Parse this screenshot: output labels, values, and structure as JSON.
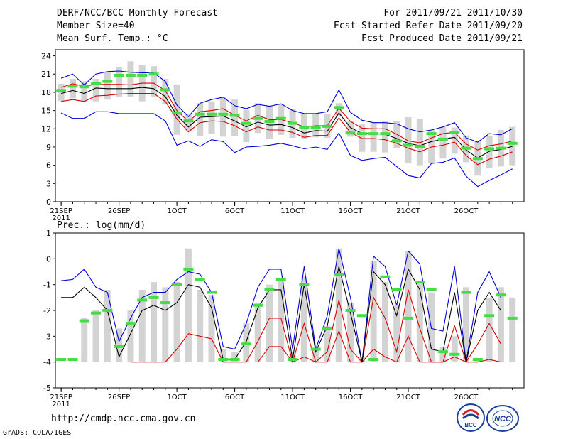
{
  "header": {
    "title": "DERF/NCC/BCC Monthly Forecast",
    "member_size": "Member Size=40",
    "variable": "Mean Surf. Temp.: °C",
    "period": "For 2011/09/21-2011/10/30",
    "refer_date": "Fcst Started Refer Date 2011/09/20",
    "produced_date": "Fcst Produced Date 2011/09/21"
  },
  "footer": {
    "url": "http://cmdp.ncc.cma.gov.cn",
    "credit": "GrADS: COLA/IGES",
    "logo_bcc": "BCC",
    "logo_ncc": "NCC"
  },
  "colors": {
    "box": "#d3d3d3",
    "mean_line": "#000000",
    "inner_band": "#dd0000",
    "outer_band": "#0000dd",
    "median_marker": "#44dd44"
  },
  "chart_data": [
    {
      "type": "line",
      "title": "Mean Surf. Temp.: °C",
      "x": [
        21,
        22,
        23,
        24,
        25,
        26,
        27,
        28,
        29,
        30,
        1,
        2,
        3,
        4,
        5,
        6,
        7,
        8,
        9,
        10,
        11,
        12,
        13,
        14,
        15,
        16,
        17,
        18,
        19,
        20,
        21,
        22,
        23,
        24,
        25,
        26,
        27,
        28,
        29,
        30
      ],
      "x_ticks": [
        "21SEP",
        "26SEP",
        "1OCT",
        "6OCT",
        "11OCT",
        "16OCT",
        "21OCT",
        "26OCT"
      ],
      "x_tick_year": "2011",
      "y_ticks": [
        "0",
        "3",
        "6",
        "9",
        "12",
        "15",
        "18",
        "21",
        "24"
      ],
      "ylim": [
        0,
        25
      ],
      "series": [
        {
          "name": "max",
          "values": [
            20.3,
            21,
            19.2,
            21,
            21.4,
            21.5,
            21.3,
            21.2,
            21.2,
            19.8,
            15.9,
            14,
            16.2,
            16.8,
            17.2,
            15.8,
            15.3,
            16,
            15.7,
            16.1,
            15,
            14.5,
            14.5,
            14.8,
            18.4,
            14.7,
            13.4,
            13,
            13,
            12.8,
            12,
            11.5,
            11.8,
            12.3,
            13,
            10.5,
            9.8,
            11.2,
            11,
            12
          ]
        },
        {
          "name": "upper",
          "values": [
            18.8,
            19.4,
            19,
            19.3,
            19.3,
            19.3,
            19.2,
            19.5,
            19.5,
            18.3,
            15,
            13.2,
            14.8,
            15,
            15.3,
            14.2,
            13.3,
            14.2,
            13.5,
            13.5,
            13,
            12.3,
            12.5,
            12.5,
            15.4,
            13.2,
            12.1,
            12,
            12,
            11.1,
            10,
            9.7,
            10.5,
            11.2,
            11.4,
            9.5,
            8.5,
            9.2,
            9.5,
            10
          ]
        },
        {
          "name": "mean",
          "values": [
            17.8,
            18.3,
            17.8,
            18.7,
            18.6,
            18.6,
            18.6,
            18.8,
            18.6,
            17.3,
            14.2,
            12.3,
            13.9,
            14,
            14.1,
            13.3,
            12.3,
            13.1,
            12.6,
            12.7,
            12.2,
            11.3,
            11.7,
            11.6,
            14.6,
            12.2,
            11.2,
            11.2,
            11.1,
            10.4,
            9.6,
            9.2,
            9.9,
            10.3,
            10.6,
            8.5,
            7.2,
            8.3,
            8.6,
            9.1
          ]
        },
        {
          "name": "lower",
          "values": [
            16.5,
            16.8,
            16.5,
            17.4,
            17.5,
            17.7,
            17.8,
            17.8,
            17.8,
            16.5,
            13.6,
            11.5,
            13,
            13.3,
            13.2,
            12.5,
            11.5,
            12.3,
            11.8,
            11.8,
            11.4,
            10.6,
            10.9,
            10.9,
            13.8,
            11.4,
            10.4,
            10.4,
            10.2,
            9.6,
            8.8,
            8.2,
            9,
            9.3,
            9.8,
            7.6,
            6.1,
            7,
            7.5,
            8.2
          ]
        },
        {
          "name": "min",
          "values": [
            14.6,
            13.7,
            13.7,
            14.8,
            14.8,
            14.5,
            14.5,
            14.5,
            14.5,
            13.3,
            9.3,
            10,
            9.1,
            10.2,
            9.9,
            8.1,
            9,
            9.1,
            9.3,
            9.6,
            9.2,
            8.7,
            9,
            8.6,
            11.3,
            7.6,
            6.8,
            7.1,
            7.3,
            5.8,
            4.3,
            3.9,
            6.3,
            6.5,
            7.2,
            4.2,
            2.5,
            3.5,
            4.4,
            5.4
          ]
        },
        {
          "name": "median",
          "values": [
            18.3,
            19,
            18.9,
            19.5,
            19.8,
            20.8,
            20.8,
            20.8,
            21,
            18.4,
            14.6,
            13.3,
            14.4,
            14.4,
            14.4,
            14.2,
            12.9,
            13.7,
            13.2,
            13.7,
            12.9,
            12.2,
            12.2,
            12.4,
            15.5,
            11.3,
            11.2,
            11.2,
            11.2,
            10,
            9.3,
            9.1,
            11.2,
            10.3,
            11.4,
            8.8,
            7.1,
            8.7,
            8.8,
            9.6
          ]
        },
        {
          "name": "box_low",
          "values": [
            16.6,
            17,
            16.5,
            16.5,
            16.8,
            17.3,
            17.3,
            16.5,
            17.3,
            16,
            11,
            11.6,
            10.8,
            11.2,
            10.7,
            10.8,
            9.8,
            11.3,
            10.3,
            11,
            10.5,
            10.4,
            10.6,
            10.5,
            14,
            10.7,
            8.2,
            8.2,
            8.1,
            8.8,
            6.3,
            6,
            6.4,
            7.1,
            7.9,
            6.5,
            4.3,
            5.5,
            5.8,
            6
          ]
        },
        {
          "name": "box_high",
          "values": [
            19.4,
            20.2,
            19.8,
            20.2,
            21.3,
            22.1,
            23.1,
            22.5,
            22.3,
            20.2,
            19.3,
            14.4,
            16.2,
            16.5,
            17.2,
            16.8,
            15.1,
            16.2,
            15.8,
            16,
            15.3,
            14.4,
            14.5,
            14.5,
            16.2,
            13.2,
            12.7,
            13,
            13.2,
            13.2,
            13.9,
            13.6,
            11.8,
            12.3,
            12.2,
            10.9,
            10,
            10.9,
            11.8,
            12.3
          ]
        }
      ]
    },
    {
      "type": "line",
      "title": "Prec.: log(mm/d)",
      "x": [
        21,
        22,
        23,
        24,
        25,
        26,
        27,
        28,
        29,
        30,
        1,
        2,
        3,
        4,
        5,
        6,
        7,
        8,
        9,
        10,
        11,
        12,
        13,
        14,
        15,
        16,
        17,
        18,
        19,
        20,
        21,
        22,
        23,
        24,
        25,
        26,
        27,
        28,
        29,
        30
      ],
      "x_ticks": [
        "21SEP",
        "26SEP",
        "1OCT",
        "6OCT",
        "11OCT",
        "16OCT",
        "21OCT",
        "26OCT"
      ],
      "x_tick_year": "2011",
      "y_ticks": [
        "-5",
        "-4",
        "-3",
        "-2",
        "-1",
        "0",
        "1"
      ],
      "ylim": [
        -5,
        1
      ],
      "series": [
        {
          "name": "max",
          "values": [
            -0.85,
            -0.8,
            -0.4,
            -1.1,
            -1.3,
            -3.2,
            -2.3,
            -1.5,
            -1.3,
            -1.3,
            -0.8,
            -0.5,
            -0.6,
            -1.3,
            -3.4,
            -3.5,
            -2.5,
            -1.1,
            -0.4,
            -0.4,
            -3.5,
            -0.3,
            -3.5,
            -2.2,
            0.4,
            -1.5,
            -4,
            0.1,
            -0.3,
            -1.8,
            0.3,
            -0.2,
            -2.7,
            -2.8,
            -0.3,
            -4,
            -1.3,
            -0.5,
            -1.5,
            null
          ]
        },
        {
          "name": "mean",
          "values": [
            -1.5,
            -1.5,
            -1.1,
            -1.5,
            -2,
            -3.8,
            -2.9,
            -2,
            -1.8,
            -2,
            -1.7,
            -1,
            -1.1,
            -1.9,
            -3.9,
            -3.9,
            -3.2,
            -1.9,
            -1.2,
            -1.2,
            -3.9,
            -1,
            -3.6,
            -2.6,
            -0.3,
            -2.1,
            -4,
            -0.5,
            -1,
            -2.2,
            -0.4,
            -1.2,
            -3.5,
            -3.6,
            -1.3,
            -4,
            -2,
            -1.3,
            -2,
            null
          ]
        },
        {
          "name": "upper",
          "values": [
            null,
            null,
            null,
            null,
            null,
            null,
            -4,
            -4,
            -4,
            -4,
            -3.5,
            -2.9,
            -3,
            -3.1,
            -4,
            -4,
            -4,
            -3.2,
            -2.3,
            -2.3,
            -4,
            -2.5,
            -4,
            -3.6,
            -1.6,
            -3.5,
            -4,
            -1.5,
            -2.3,
            -3.6,
            -1.2,
            -2.7,
            -4,
            -4,
            -2.6,
            -4,
            -3.3,
            -2.5,
            -3.3,
            null
          ]
        },
        {
          "name": "lower",
          "values": [
            null,
            null,
            null,
            null,
            null,
            null,
            null,
            null,
            null,
            null,
            null,
            null,
            null,
            null,
            null,
            null,
            null,
            -4,
            -3.4,
            -3.4,
            -4,
            -3.8,
            -4,
            -4,
            -2.8,
            -4,
            -4,
            -3.5,
            -3.8,
            -4,
            -3,
            -4,
            -4,
            -4,
            -3.8,
            -4,
            -4,
            -3.9,
            -4,
            null
          ]
        },
        {
          "name": "median",
          "values": [
            -3.9,
            -3.9,
            -2.4,
            -2.1,
            -2,
            -3.4,
            -2.5,
            -1.6,
            -1.5,
            -1.7,
            -1,
            -0.4,
            -0.8,
            -1.3,
            -3.9,
            -3.9,
            -3.3,
            -1.8,
            -1.2,
            -0.8,
            -3.9,
            -1,
            -3.5,
            -2.7,
            -0.6,
            -2,
            -2.2,
            -3.9,
            -0.7,
            -1.2,
            -2.3,
            -0.9,
            -1.2,
            -3.6,
            -3.7,
            -1.3,
            -3.9,
            -2.2,
            -1.4,
            -2.3
          ]
        },
        {
          "name": "box_low",
          "values": [
            -4,
            -4,
            -4,
            -4,
            -4,
            -4,
            -4,
            -4,
            -4,
            -4,
            -4,
            -4,
            -4,
            -4,
            -4,
            -4,
            -4,
            -4,
            -4,
            -4,
            -4,
            -4,
            -4,
            -4,
            -4,
            -4,
            -4,
            -4,
            -4,
            -4,
            -4,
            -4,
            -4,
            -4,
            -4,
            -4,
            -4,
            -4,
            -4,
            -4
          ]
        },
        {
          "name": "box_high",
          "values": [
            null,
            null,
            -2.3,
            -2,
            -1.2,
            -2.7,
            -2,
            -1.2,
            -0.9,
            -1.1,
            -0.9,
            0.4,
            -1.2,
            -1.4,
            -3.5,
            -3.6,
            -2.5,
            -1.7,
            -1,
            -0.8,
            -3.6,
            -0.7,
            -3.5,
            -2.6,
            0.4,
            -1.7,
            -3.8,
            -0.1,
            -0.9,
            -1.8,
            0.3,
            -0.9,
            -1.3,
            -3.4,
            -3,
            -1.1,
            -3.9,
            -1.5,
            -1.1,
            -1.5
          ]
        }
      ]
    }
  ]
}
